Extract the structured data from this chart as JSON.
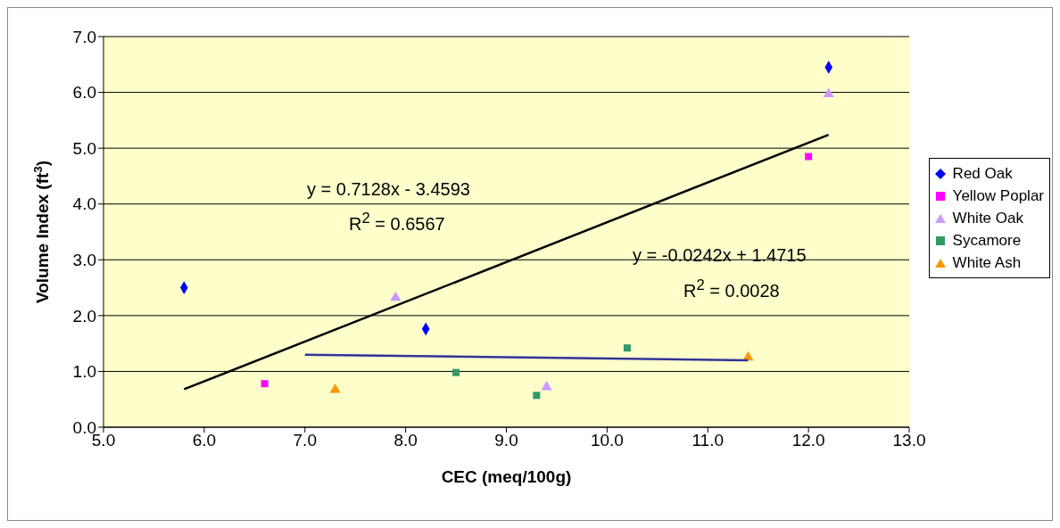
{
  "chart_data": {
    "type": "scatter",
    "xlabel": "CEC (meq/100g)",
    "ylabel": "Volume Index (ft$^{3}$)",
    "xlim": [
      5.0,
      13.0
    ],
    "xticks": [
      {
        "value": 5,
        "label": "5.0"
      },
      {
        "value": 6,
        "label": "6.0"
      },
      {
        "value": 7,
        "label": "7.0"
      },
      {
        "value": 8,
        "label": "8.0"
      },
      {
        "value": 9,
        "label": "9.0"
      },
      {
        "value": 10,
        "label": "10.0"
      },
      {
        "value": 11,
        "label": "11.0"
      },
      {
        "value": 12,
        "label": "12.0"
      },
      {
        "value": 13,
        "label": "13.0"
      }
    ],
    "ylim": [
      0.0,
      7.0
    ],
    "yticks": [
      {
        "value": 0,
        "label": "0.0"
      },
      {
        "value": 1,
        "label": "1.0"
      },
      {
        "value": 2,
        "label": "2.0"
      },
      {
        "value": 3,
        "label": "3.0"
      },
      {
        "value": 4,
        "label": "4.0"
      },
      {
        "value": 5,
        "label": "5.0"
      },
      {
        "value": 6,
        "label": "6.0"
      },
      {
        "value": 7,
        "label": "7.0"
      }
    ],
    "grid": "y",
    "legend": "right",
    "series": [
      {
        "name": "Red Oak",
        "color": "#0000ff",
        "marker": "diamond",
        "x": [
          5.8,
          8.2,
          12.2
        ],
        "values": [
          2.5,
          1.76,
          6.45
        ]
      },
      {
        "name": "Yellow Poplar",
        "color": "#ff00ff",
        "marker": "square",
        "x": [
          6.6,
          12.0
        ],
        "values": [
          0.78,
          4.85
        ]
      },
      {
        "name": "White Oak",
        "color": "#cc99ff",
        "marker": "triangle",
        "x": [
          7.9,
          9.4,
          12.2
        ],
        "values": [
          2.32,
          0.72,
          5.97
        ]
      },
      {
        "name": "Sycamore",
        "color": "#339966",
        "marker": "square",
        "x": [
          8.5,
          9.3,
          10.2
        ],
        "values": [
          0.98,
          0.57,
          1.42
        ]
      },
      {
        "name": "White Ash",
        "color": "#ff9900",
        "marker": "triangle",
        "x": [
          7.3,
          11.4
        ],
        "values": [
          0.67,
          1.25
        ]
      },
      {
        "type": "line",
        "color": "#000000",
        "marker": "none",
        "x": [
          5.8,
          12.2
        ],
        "values": [
          0.68,
          5.24
        ]
      },
      {
        "type": "line",
        "color": "#333399",
        "marker": "none",
        "x": [
          7.0,
          11.4
        ],
        "values": [
          1.3,
          1.2
        ]
      }
    ],
    "annotations": [
      "y = 0.7128x - 3.4593",
      "R$^{2}$ = 0.6567",
      "y = -0.0242x + 1.4715",
      "R$^{2}$ = 0.0028"
    ]
  }
}
